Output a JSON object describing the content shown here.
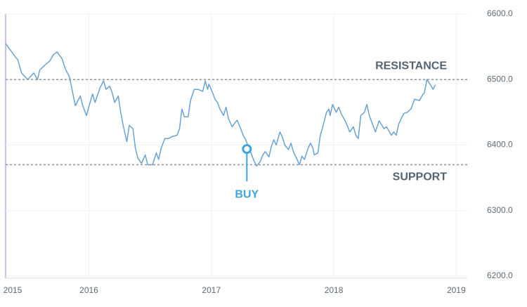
{
  "chart_data": {
    "type": "line",
    "color": "#6aa3d2",
    "xlim": [
      2015.32,
      2019.09
    ],
    "xticks": [
      2015,
      2016,
      2017,
      2018,
      2019
    ],
    "ylim": [
      6200,
      6600
    ],
    "yticks": [
      {
        "value": 6200,
        "label": "6200.0"
      },
      {
        "value": 6300,
        "label": "6300.0"
      },
      {
        "value": 6400,
        "label": "6400.0"
      },
      {
        "value": 6500,
        "label": "6500.0"
      },
      {
        "value": 6600,
        "label": "6600.0"
      }
    ],
    "grid": true,
    "x": [
      2015.32,
      2015.39,
      2015.42,
      2015.45,
      2015.5,
      2015.55,
      2015.58,
      2015.6,
      2015.64,
      2015.68,
      2015.71,
      2015.74,
      2015.78,
      2015.81,
      2015.84,
      2015.89,
      2015.93,
      2015.95,
      2015.98,
      2016.01,
      2016.03,
      2016.05,
      2016.09,
      2016.12,
      2016.14,
      2016.17,
      2016.19,
      2016.21,
      2016.24,
      2016.26,
      2016.28,
      2016.31,
      2016.33,
      2016.36,
      2016.38,
      2016.4,
      2016.43,
      2016.46,
      2016.48,
      2016.52,
      2016.55,
      2016.57,
      2016.59,
      2016.62,
      2016.65,
      2016.68,
      2016.72,
      2016.74,
      2016.76,
      2016.78,
      2016.81,
      2016.83,
      2016.86,
      2016.89,
      2016.93,
      2016.95,
      2016.97,
      2016.98,
      2017.01,
      2017.03,
      2017.05,
      2017.07,
      2017.1,
      2017.12,
      2017.14,
      2017.17,
      2017.19,
      2017.21,
      2017.24,
      2017.26,
      2017.28,
      2017.32,
      2017.35,
      2017.37,
      2017.4,
      2017.42,
      2017.44,
      2017.47,
      2017.49,
      2017.51,
      2017.53,
      2017.56,
      2017.58,
      2017.6,
      2017.63,
      2017.65,
      2017.67,
      2017.7,
      2017.72,
      2017.74,
      2017.76,
      2017.79,
      2017.81,
      2017.83,
      2017.84,
      2017.87,
      2017.89,
      2017.91,
      2017.94,
      2017.96,
      2017.97,
      2017.99,
      2018.02,
      2018.04,
      2018.06,
      2018.09,
      2018.11,
      2018.13,
      2018.16,
      2018.18,
      2018.2,
      2018.22,
      2018.25,
      2018.27,
      2018.29,
      2018.32,
      2018.34,
      2018.37,
      2018.41,
      2018.43,
      2018.47,
      2018.49,
      2018.51,
      2018.53,
      2018.57,
      2018.6,
      2018.63,
      2018.66,
      2018.7,
      2018.72,
      2018.74,
      2018.76,
      2018.79,
      2018.81,
      2018.83
    ],
    "values": [
      6555,
      6537,
      6530,
      6510,
      6500,
      6510,
      6500,
      6515,
      6522,
      6528,
      6538,
      6542,
      6532,
      6515,
      6505,
      6460,
      6475,
      6460,
      6445,
      6465,
      6478,
      6465,
      6487,
      6498,
      6485,
      6490,
      6480,
      6465,
      6475,
      6450,
      6430,
      6405,
      6430,
      6425,
      6395,
      6380,
      6372,
      6385,
      6370,
      6370,
      6388,
      6378,
      6395,
      6410,
      6410,
      6413,
      6415,
      6425,
      6455,
      6443,
      6443,
      6468,
      6485,
      6485,
      6482,
      6498,
      6485,
      6493,
      6480,
      6470,
      6465,
      6455,
      6445,
      6458,
      6440,
      6428,
      6433,
      6438,
      6425,
      6415,
      6408,
      6390,
      6375,
      6368,
      6375,
      6385,
      6390,
      6382,
      6398,
      6408,
      6400,
      6420,
      6412,
      6400,
      6393,
      6403,
      6390,
      6378,
      6370,
      6383,
      6378,
      6395,
      6403,
      6395,
      6385,
      6388,
      6415,
      6428,
      6450,
      6455,
      6445,
      6462,
      6450,
      6458,
      6448,
      6438,
      6430,
      6420,
      6428,
      6415,
      6410,
      6445,
      6450,
      6462,
      6445,
      6430,
      6420,
      6437,
      6425,
      6428,
      6415,
      6420,
      6415,
      6432,
      6448,
      6450,
      6455,
      6470,
      6468,
      6475,
      6480,
      6500,
      6492,
      6485,
      6492
    ],
    "resistance": {
      "label": "RESISTANCE",
      "value": 6500
    },
    "support": {
      "label": "SUPPORT",
      "value": 6370
    },
    "buy": {
      "label": "BUY",
      "x": 2017.29,
      "value": 6394,
      "color": "#3ea6da"
    }
  }
}
